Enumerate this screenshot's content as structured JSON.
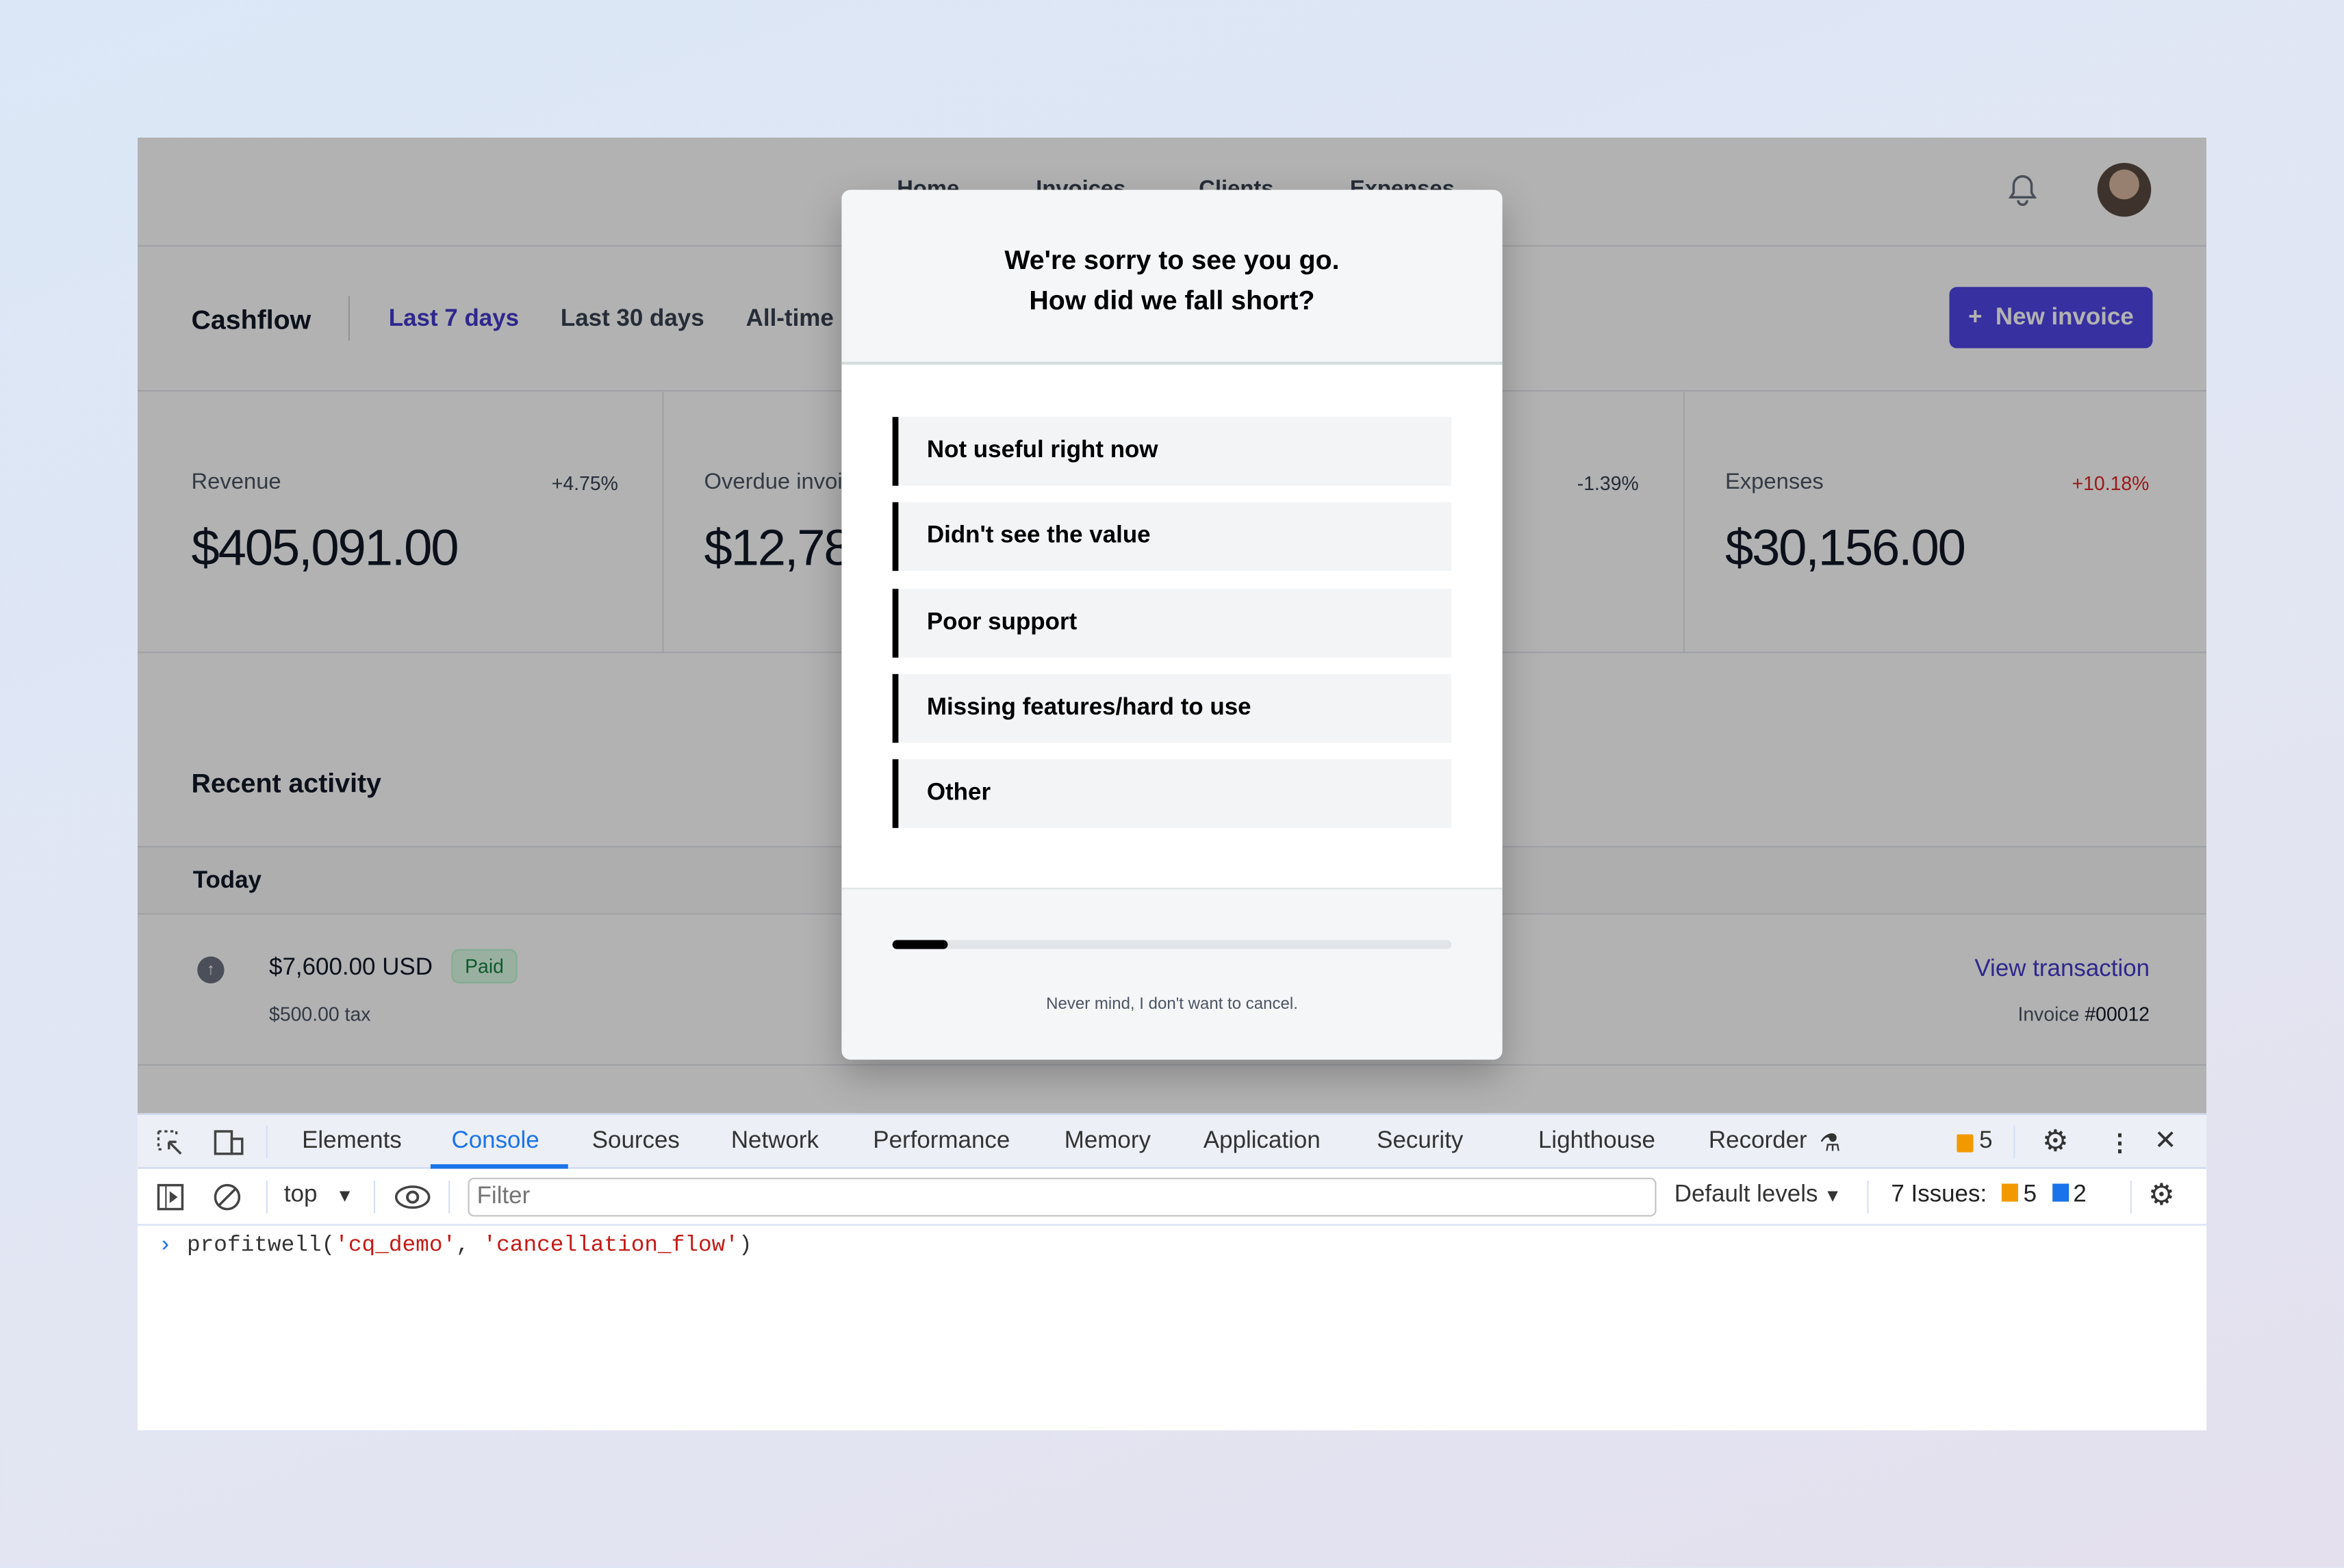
{
  "nav": {
    "items": [
      "Home",
      "Invoices",
      "Clients",
      "Expenses"
    ]
  },
  "header": {
    "title": "Cashflow",
    "tabs": [
      "Last 7 days",
      "Last 30 days",
      "All-time"
    ],
    "active_tab": "Last 7 days",
    "new_invoice": "New invoice",
    "new_invoice_icon": "+"
  },
  "stats": [
    {
      "label": "Revenue",
      "change": "+4.75%",
      "value": "$405,091.00"
    },
    {
      "label": "Overdue invoices",
      "change": "",
      "value": "$12,787.00"
    },
    {
      "label": "",
      "change": "-1.39%",
      "value": ""
    },
    {
      "label": "Expenses",
      "change": "+10.18%",
      "value": "$30,156.00"
    }
  ],
  "activity": {
    "title": "Recent activity",
    "group": "Today",
    "row": {
      "amount": "$7,600.00 USD",
      "status": "Paid",
      "tax": "$500.00 tax",
      "link": "View transaction",
      "invoice_label": "Invoice",
      "invoice_no": "#00012"
    }
  },
  "modal": {
    "title_line1": "We're sorry to see you go.",
    "title_line2": "How did we fall short?",
    "options": [
      "Not useful right now",
      "Didn't see the value",
      "Poor support",
      "Missing features/hard to use",
      "Other"
    ],
    "progress": 0.1,
    "cancel_link": "Never mind, I don't want to cancel."
  },
  "devtools": {
    "tabs": [
      "Elements",
      "Console",
      "Sources",
      "Network",
      "Performance",
      "Memory",
      "Application",
      "Security",
      "Lighthouse",
      "Recorder"
    ],
    "active_tab": "Console",
    "warnings_count": "5",
    "context": "top",
    "filter_placeholder": "Filter",
    "levels": "Default levels",
    "issues_label": "7 Issues:",
    "issues_warn": "5",
    "issues_info": "2",
    "console": {
      "fn": "profitwell(",
      "arg1": "'cq_demo'",
      "sep": ", ",
      "arg2": "'cancellation_flow'",
      "close": ")"
    }
  },
  "colors": {
    "accent": "#4338ca",
    "danger": "#dc2626",
    "paid_bg": "#dcfce7",
    "paid_text": "#15803d",
    "devtools_blue": "#1a73e8",
    "string_red": "#c41a16",
    "warn_orange": "#f29900"
  }
}
